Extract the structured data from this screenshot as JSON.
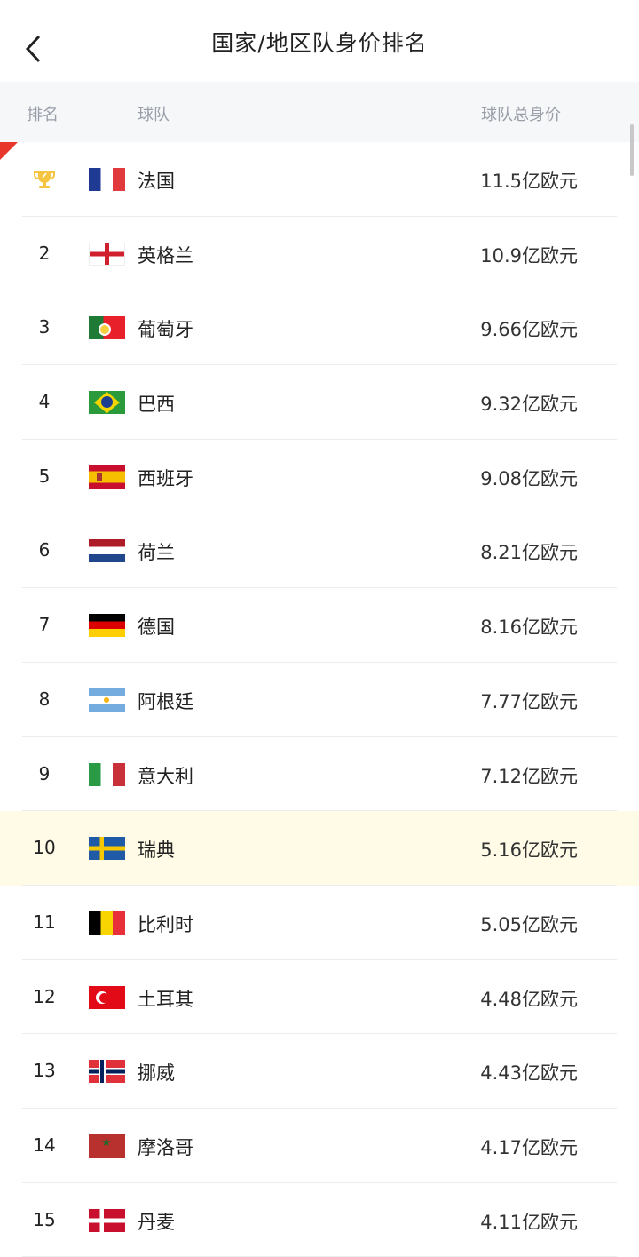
{
  "header": {
    "title": "国家/地区队身价排名",
    "back_icon": "chevron-left-icon"
  },
  "columns": {
    "rank": "排名",
    "team": "球队",
    "value": "球队总身价"
  },
  "colors": {
    "accent": "#e8362a",
    "highlight_row": "#fffbe6",
    "trophy": "#f5c542"
  },
  "rows": [
    {
      "rank": "1",
      "trophy": true,
      "flag": "fr",
      "name": "法国",
      "value": "11.5亿欧元"
    },
    {
      "rank": "2",
      "flag": "en",
      "name": "英格兰",
      "value": "10.9亿欧元"
    },
    {
      "rank": "3",
      "flag": "pt",
      "name": "葡萄牙",
      "value": "9.66亿欧元"
    },
    {
      "rank": "4",
      "flag": "br",
      "name": "巴西",
      "value": "9.32亿欧元"
    },
    {
      "rank": "5",
      "flag": "es",
      "name": "西班牙",
      "value": "9.08亿欧元"
    },
    {
      "rank": "6",
      "flag": "nl",
      "name": "荷兰",
      "value": "8.21亿欧元"
    },
    {
      "rank": "7",
      "flag": "de",
      "name": "德国",
      "value": "8.16亿欧元"
    },
    {
      "rank": "8",
      "flag": "ar",
      "name": "阿根廷",
      "value": "7.77亿欧元"
    },
    {
      "rank": "9",
      "flag": "it",
      "name": "意大利",
      "value": "7.12亿欧元"
    },
    {
      "rank": "10",
      "flag": "se",
      "name": "瑞典",
      "value": "5.16亿欧元",
      "highlighted": true
    },
    {
      "rank": "11",
      "flag": "be",
      "name": "比利时",
      "value": "5.05亿欧元"
    },
    {
      "rank": "12",
      "flag": "tr",
      "name": "土耳其",
      "value": "4.48亿欧元"
    },
    {
      "rank": "13",
      "flag": "no",
      "name": "挪威",
      "value": "4.43亿欧元"
    },
    {
      "rank": "14",
      "flag": "ma",
      "name": "摩洛哥",
      "value": "4.17亿欧元"
    },
    {
      "rank": "15",
      "flag": "dk",
      "name": "丹麦",
      "value": "4.11亿欧元"
    }
  ]
}
